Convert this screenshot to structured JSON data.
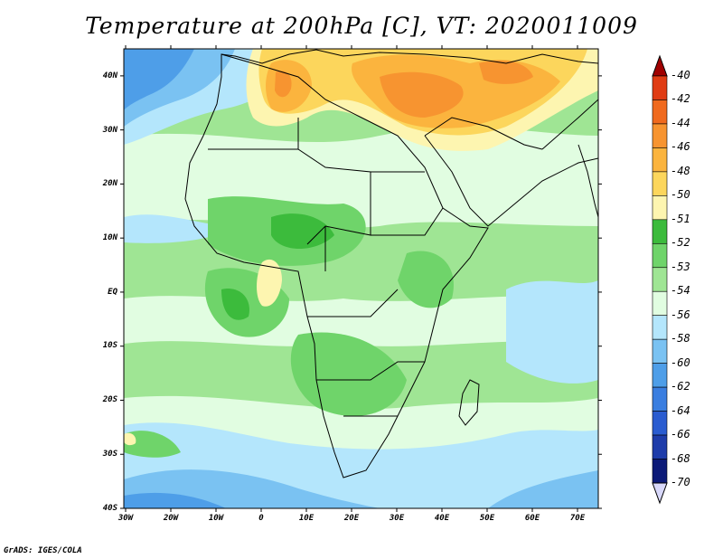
{
  "title": "Temperature at 200hPa [C], VT: 2020011009",
  "credit": "GrADS: IGES/COLA",
  "map": {
    "variable": "Temperature",
    "level": "200hPa",
    "units": "C",
    "valid_time": "2020011009",
    "lon_range": [
      -30,
      75
    ],
    "lat_range": [
      -40,
      45
    ],
    "lat_ticks": [
      "40N",
      "30N",
      "20N",
      "10N",
      "EQ",
      "10S",
      "20S",
      "30S",
      "40S"
    ],
    "lon_ticks": [
      "30W",
      "20W",
      "10W",
      "0",
      "10E",
      "20E",
      "30E",
      "40E",
      "50E",
      "60E",
      "70E"
    ]
  },
  "colorbar": {
    "labels": [
      "-40",
      "-42",
      "-44",
      "-46",
      "-48",
      "-50",
      "-51",
      "-52",
      "-53",
      "-54",
      "-56",
      "-58",
      "-60",
      "-62",
      "-64",
      "-66",
      "-68",
      "-70"
    ],
    "colors": [
      "#a00000",
      "#e03c14",
      "#f06a1e",
      "#f79430",
      "#fbb43e",
      "#fcd65c",
      "#fdf5b0",
      "#3cbb3c",
      "#6fd46a",
      "#9fe594",
      "#e1fde1",
      "#b4e6fc",
      "#7ac2f2",
      "#4e9ee8",
      "#3a7ee0",
      "#2a5cd0",
      "#1e3caa",
      "#0c1a78",
      "#d8d8fa"
    ]
  }
}
